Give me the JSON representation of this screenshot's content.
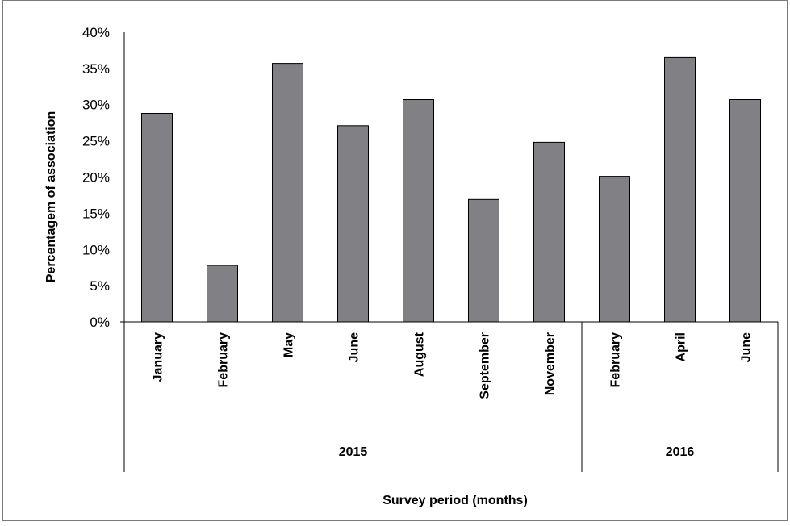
{
  "chart_data": {
    "type": "bar",
    "title": "",
    "xlabel": "Survey period (months)",
    "ylabel": "Percentagem of association",
    "ylim": [
      0,
      0.4
    ],
    "yticks": [
      "0%",
      "5%",
      "10%",
      "15%",
      "20%",
      "25%",
      "30%",
      "35%",
      "40%"
    ],
    "categories": [
      "January",
      "February",
      "May",
      "June",
      "August",
      "September",
      "November",
      "February",
      "April",
      "June"
    ],
    "groups": [
      {
        "label": "2015",
        "count": 7
      },
      {
        "label": "2016",
        "count": 3
      }
    ],
    "values": [
      0.288,
      0.078,
      0.357,
      0.271,
      0.307,
      0.169,
      0.248,
      0.201,
      0.365,
      0.307
    ],
    "grid": false,
    "legend": "none",
    "bar_color": "#808085",
    "bar_stroke": "#000000"
  }
}
